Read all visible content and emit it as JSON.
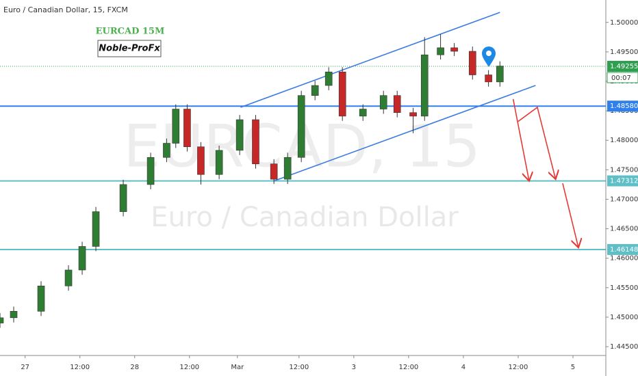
{
  "chart_data": {
    "type": "candlestick",
    "title": "Euro / Canadian Dollar, 15, FXCM",
    "watermark": "EURCAD, 15",
    "watermark_subtitle": "Euro / Canadian Dollar",
    "annotations": [
      "EURCAD 15M",
      "Noble-ProFx"
    ],
    "up_color": "#2e7d32",
    "down_color": "#c62828",
    "x": [
      -5.5,
      -2.5,
      3.5,
      9.5,
      12.5,
      15.5,
      21.5,
      27.5,
      31,
      33,
      35.5,
      38.5,
      42.5,
      47,
      50.5,
      54.5,
      57.5,
      60.5,
      63.5,
      66.5,
      69.5,
      74,
      78.5,
      81.5,
      85,
      87.5,
      91,
      94,
      98,
      101.5,
      104
    ],
    "open": [
      1.449,
      1.4499,
      1.451,
      1.4553,
      1.458,
      1.462,
      1.4679,
      1.4725,
      1.4771,
      1.4795,
      1.4853,
      1.4789,
      1.4742,
      1.4783,
      1.4835,
      1.476,
      1.4734,
      1.4771,
      1.4876,
      1.4893,
      1.4916,
      1.4841,
      1.4853,
      1.4876,
      1.4847,
      1.4841,
      1.4945,
      1.4957,
      1.4951,
      1.4911,
      1.4899
    ],
    "high": [
      1.4507,
      1.4518,
      1.4561,
      1.4588,
      1.4628,
      1.4687,
      1.4733,
      1.4779,
      1.4803,
      1.4861,
      1.4861,
      1.4797,
      1.4791,
      1.4843,
      1.4843,
      1.4768,
      1.4779,
      1.4884,
      1.4901,
      1.4924,
      1.4924,
      1.4861,
      1.4884,
      1.4884,
      1.4855,
      1.4975,
      1.498,
      1.4965,
      1.4959,
      1.4919,
      1.4934
    ],
    "low": [
      1.4482,
      1.4491,
      1.4502,
      1.4545,
      1.4572,
      1.4612,
      1.4671,
      1.4717,
      1.4763,
      1.4787,
      1.4781,
      1.4725,
      1.4734,
      1.4775,
      1.4752,
      1.4726,
      1.4726,
      1.4763,
      1.4868,
      1.4885,
      1.4833,
      1.4833,
      1.4845,
      1.4839,
      1.4812,
      1.4833,
      1.4937,
      1.4943,
      1.4903,
      1.4891,
      1.4891
    ],
    "close": [
      1.4499,
      1.451,
      1.4553,
      1.458,
      1.462,
      1.4679,
      1.4725,
      1.4771,
      1.4795,
      1.4853,
      1.4789,
      1.4742,
      1.4783,
      1.4835,
      1.476,
      1.4734,
      1.4771,
      1.4876,
      1.4893,
      1.4916,
      1.4841,
      1.4853,
      1.4876,
      1.4847,
      1.4841,
      1.4945,
      1.4957,
      1.4951,
      1.4911,
      1.4899,
      1.4926
    ],
    "xlim": [
      -5.5,
      127.2
    ],
    "xticks": [
      {
        "value": 0,
        "label": "27"
      },
      {
        "value": 12,
        "label": "12:00"
      },
      {
        "value": 24,
        "label": "28"
      },
      {
        "value": 36,
        "label": "12:00"
      },
      {
        "value": 46.5,
        "label": "Mar"
      },
      {
        "value": 60,
        "label": "12:00"
      },
      {
        "value": 72,
        "label": "3"
      },
      {
        "value": 84,
        "label": "12:00"
      },
      {
        "value": 96,
        "label": "4"
      },
      {
        "value": 108,
        "label": "12:00"
      },
      {
        "value": 120,
        "label": "5"
      }
    ],
    "ylim": [
      1.4435,
      1.5038
    ],
    "yticks": [
      {
        "value": 1.445,
        "label": "1.44500"
      },
      {
        "value": 1.45,
        "label": "1.45000"
      },
      {
        "value": 1.455,
        "label": "1.45500"
      },
      {
        "value": 1.46,
        "label": "1.46000"
      },
      {
        "value": 1.465,
        "label": "1.46500"
      },
      {
        "value": 1.47,
        "label": "1.47000"
      },
      {
        "value": 1.475,
        "label": "1.47500"
      },
      {
        "value": 1.48,
        "label": "1.48000"
      },
      {
        "value": 1.485,
        "label": "1.48500"
      },
      {
        "value": 1.49,
        "label": "1.49000"
      },
      {
        "value": 1.495,
        "label": "1.49500"
      },
      {
        "value": 1.5,
        "label": "1.50000"
      }
    ],
    "levels": [
      {
        "value": 1.4858,
        "label": "1.48580"
      },
      1.47312,
      1.46148
    ],
    "level_colors": [
      "#2f80ed",
      "#5fbfc7",
      "#5fbfc7"
    ],
    "last_price": 1.49255,
    "last_price_color": "#2e9e4f",
    "countdown": "00:07",
    "trend_lines": [
      {
        "x": [
          47.2,
          104
        ],
        "y": [
          1.4856,
          1.5017
        ]
      },
      {
        "x": [
          54.5,
          111.8
        ],
        "y": [
          1.4731,
          1.4893
        ]
      }
    ],
    "trend_color": "#3a7be0",
    "arrows": [
      {
        "x": [
          106.9,
          110.4
        ],
        "y": [
          1.487,
          1.4731
        ]
      },
      {
        "x": [
          108,
          112.2,
          116.2
        ],
        "y": [
          1.4832,
          1.4856,
          1.4734
        ]
      },
      {
        "x": [
          117.75,
          121.2
        ],
        "y": [
          1.4727,
          1.4618
        ]
      }
    ],
    "arrow_color": "#e53935"
  }
}
